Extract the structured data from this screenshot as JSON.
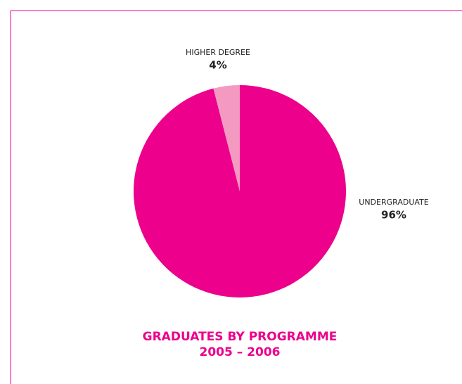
{
  "chart_data": {
    "type": "pie",
    "title": "GRADUATES BY PROGRAMME",
    "subtitle": "2005 – 2006",
    "categories": [
      "UNDERGRADUATE",
      "HIGHER DEGREE"
    ],
    "values": [
      96,
      4
    ],
    "value_labels": [
      "96%",
      "4%"
    ],
    "colors": [
      "#ec008c",
      "#f49ac1"
    ]
  }
}
